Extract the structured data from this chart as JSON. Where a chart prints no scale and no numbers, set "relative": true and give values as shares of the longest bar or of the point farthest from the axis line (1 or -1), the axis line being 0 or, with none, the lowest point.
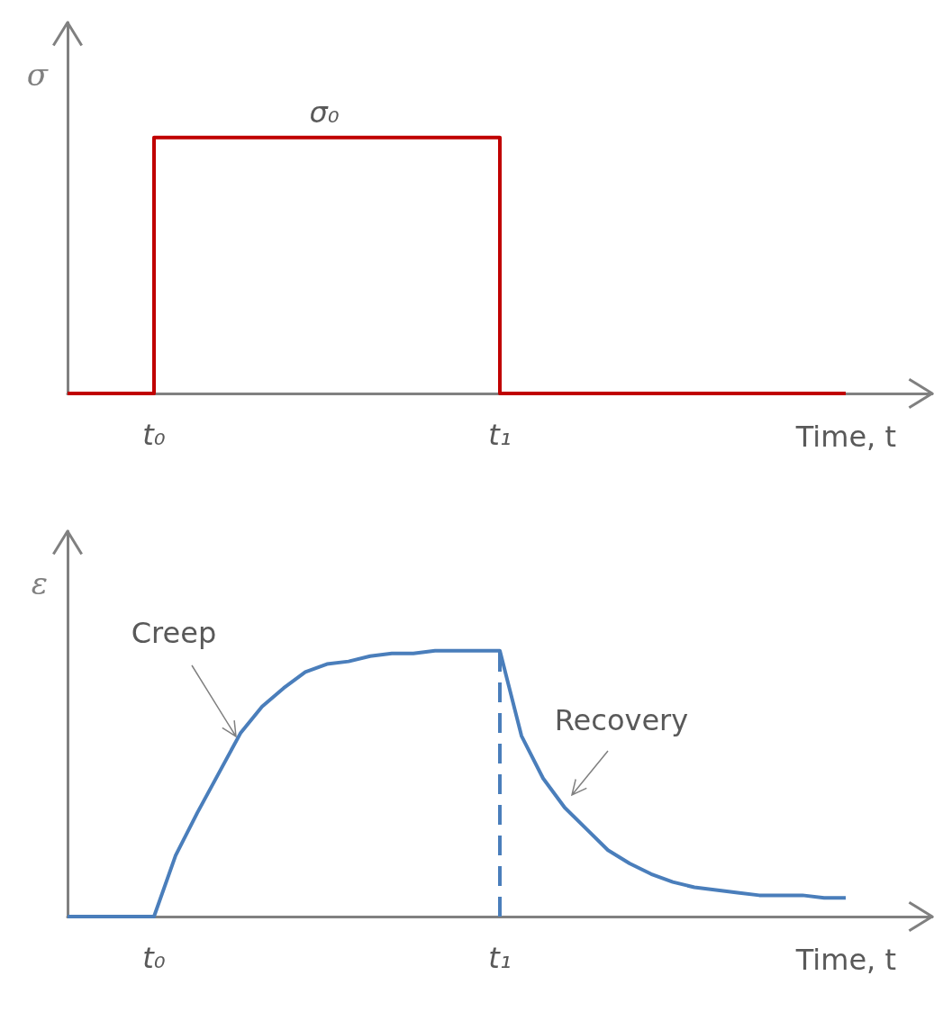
{
  "chart_data": [
    {
      "type": "step",
      "ylabel": "σ",
      "xlabel": "Time, t",
      "relative": true,
      "tick_labels": "x",
      "marker": "none",
      "categories": [
        null,
        null,
        null,
        null,
        "t₀",
        null,
        null,
        null,
        null,
        null,
        null,
        null,
        null,
        null,
        null,
        null,
        null,
        null,
        null,
        null,
        "t₁",
        null,
        null,
        null,
        null,
        null,
        null,
        null,
        null,
        null,
        null,
        null,
        null,
        null,
        null,
        null,
        null,
        null,
        null,
        null,
        null
      ],
      "annotations": [
        "σ₀"
      ],
      "series": [
        {
          "color": "#c00000",
          "values": [
            0,
            0,
            0,
            0,
            1,
            1,
            1,
            1,
            1,
            1,
            1,
            1,
            1,
            1,
            1,
            1,
            1,
            1,
            1,
            1,
            0,
            0,
            0,
            0,
            0,
            0,
            0,
            0,
            0,
            0,
            0,
            0,
            0,
            0,
            0,
            0,
            0,
            null,
            null,
            null,
            null
          ]
        }
      ]
    },
    {
      "type": "line",
      "ylabel": "ε",
      "xlabel": "Time, t",
      "relative": true,
      "tick_labels": "x",
      "marker": "none",
      "categories": [
        null,
        null,
        null,
        null,
        "t₀",
        null,
        null,
        null,
        null,
        null,
        null,
        null,
        null,
        null,
        null,
        null,
        null,
        null,
        null,
        null,
        "t₁",
        null,
        null,
        null,
        null,
        null,
        null,
        null,
        null,
        null,
        null,
        null,
        null,
        null,
        null,
        null,
        null,
        null,
        null,
        null,
        null
      ],
      "annotations": [
        "Creep",
        "Recovery"
      ],
      "ref_lines": [
        {
          "axis": "x",
          "value": "t₁",
          "color": "#4a7ebb",
          "line_style": "dashed"
        }
      ],
      "series": [
        {
          "color": "#4a7ebb",
          "values": [
            0,
            0,
            0,
            0,
            0,
            0.23,
            0.39,
            0.54,
            0.69,
            0.79,
            0.86,
            0.92,
            0.95,
            0.96,
            0.98,
            0.99,
            0.99,
            1,
            1,
            1,
            1,
            0.68,
            0.52,
            0.41,
            0.33,
            0.25,
            0.2,
            0.16,
            0.13,
            0.11,
            0.1,
            0.09,
            0.08,
            0.08,
            0.08,
            0.07,
            0.07,
            null,
            null,
            null,
            null
          ]
        }
      ]
    }
  ]
}
